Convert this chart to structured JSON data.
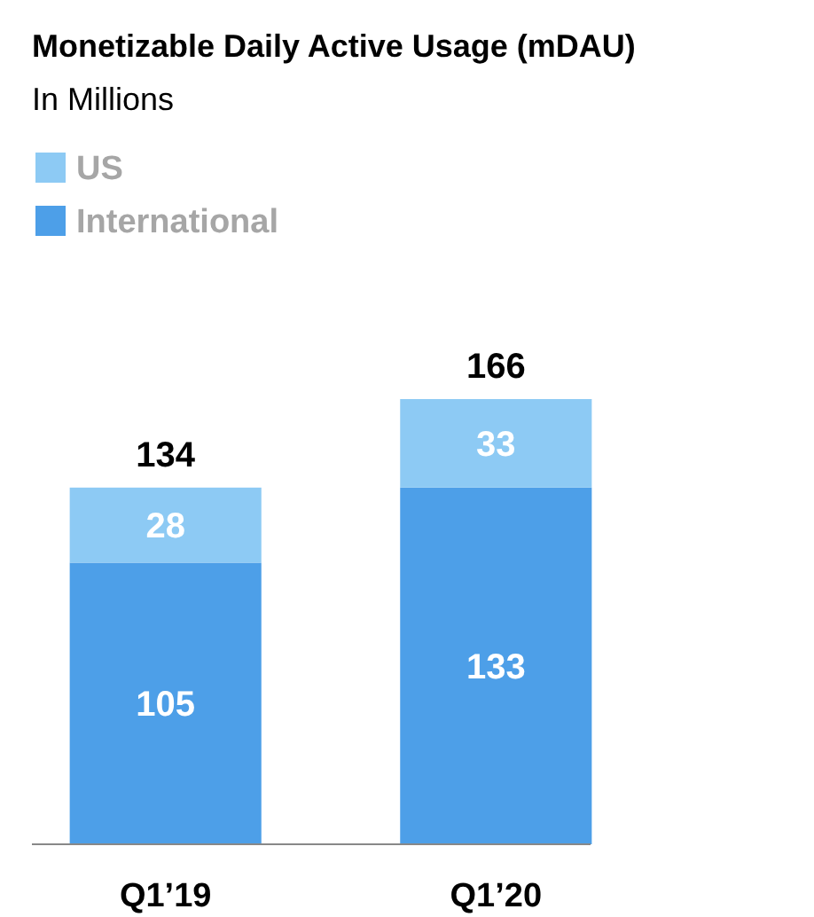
{
  "chart_data": {
    "type": "bar",
    "title": "Monetizable Daily Active Usage (mDAU)",
    "subtitle": "In Millions",
    "categories": [
      "Q1’19",
      "Q1’20"
    ],
    "stacked": true,
    "legend": "top left",
    "data_labels": true,
    "totals": [
      "134",
      "166"
    ],
    "series": [
      {
        "name": "International",
        "color": "#4d9fe8",
        "values": [
          105,
          133
        ]
      },
      {
        "name": "US",
        "color": "#8dcaf4",
        "values": [
          28,
          33
        ]
      }
    ]
  }
}
